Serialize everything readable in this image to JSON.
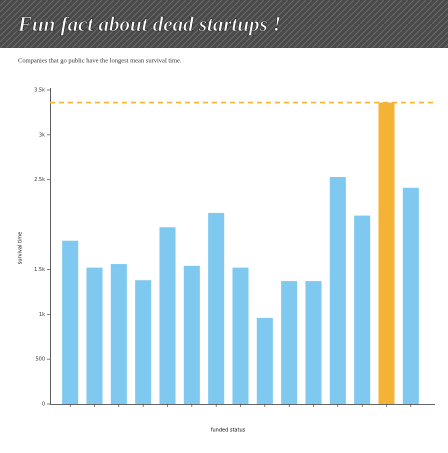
{
  "chart_data": {
    "type": "bar",
    "title": "Fun fact about dead startups !",
    "subtitle": "Companies that go public have the longest mean survival time.",
    "x_label": "funded status",
    "y_label": "survival time",
    "categories": [
      null,
      null,
      null,
      null,
      null,
      null,
      null,
      null,
      null,
      null,
      null,
      null,
      null,
      null,
      null
    ],
    "values": [
      1820,
      1520,
      1560,
      1380,
      1970,
      1540,
      2130,
      1520,
      960,
      1370,
      1370,
      2530,
      2100,
      3360,
      2410
    ],
    "color": "#7fc9f0",
    "highlight_color": "#f5b335",
    "ylim": [
      0,
      3500
    ],
    "yticks": [
      0,
      500,
      {
        "value": 1000,
        "label": "1k"
      },
      {
        "value": 1500,
        "label": "1.5k"
      },
      {
        "value": 2500,
        "label": "2.5k"
      },
      {
        "value": 3000,
        "label": "3k"
      },
      {
        "value": 3500,
        "label": "3.5k"
      }
    ]
  }
}
